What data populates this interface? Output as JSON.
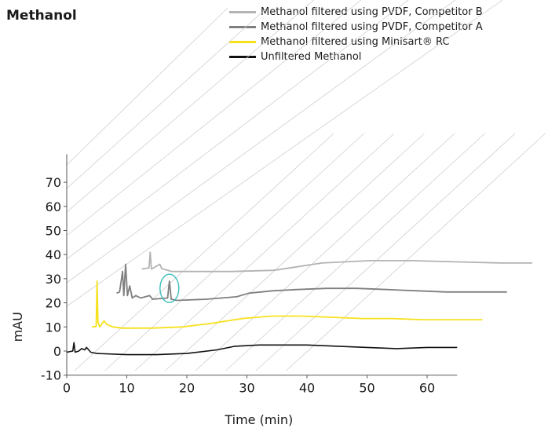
{
  "chart_data": {
    "type": "line",
    "title": "Methanol",
    "xlabel": "Time (min)",
    "ylabel": "mAU",
    "xlim": [
      0,
      65
    ],
    "ylim": [
      -10,
      80
    ],
    "x_ticks": [
      "0",
      "10",
      "20",
      "30",
      "40",
      "50",
      "60"
    ],
    "y_ticks": [
      "-10",
      "0",
      "10",
      "20",
      "30",
      "40",
      "50",
      "60",
      "70"
    ],
    "legend_position": "top",
    "series": [
      {
        "name": "Methanol filtered using PVDF, Competitor B",
        "color": "#b3b3b3",
        "offset_min": 12.5,
        "points": [
          [
            0,
            34
          ],
          [
            1.2,
            34.5
          ],
          [
            1.4,
            41
          ],
          [
            1.6,
            34
          ],
          [
            3,
            36
          ],
          [
            3.3,
            34.2
          ],
          [
            5,
            33
          ],
          [
            15,
            33
          ],
          [
            22,
            33.5
          ],
          [
            30,
            36.5
          ],
          [
            38,
            37.5
          ],
          [
            45,
            37.5
          ],
          [
            52,
            37
          ],
          [
            60,
            36.5
          ],
          [
            65,
            36.5
          ]
        ]
      },
      {
        "name": "Methanol filtered using PVDF, Competitor A",
        "color": "#7f7f7f",
        "offset_min": 8.3,
        "points": [
          [
            0,
            24
          ],
          [
            0.5,
            24.5
          ],
          [
            1.0,
            33
          ],
          [
            1.2,
            23
          ],
          [
            1.5,
            36
          ],
          [
            1.8,
            23
          ],
          [
            2.2,
            27
          ],
          [
            2.6,
            22
          ],
          [
            3.2,
            23
          ],
          [
            4,
            22
          ],
          [
            5.5,
            23
          ],
          [
            6,
            21.5
          ],
          [
            8.5,
            22
          ],
          [
            8.8,
            29
          ],
          [
            9.1,
            21.5
          ],
          [
            10,
            21
          ],
          [
            15,
            21.5
          ],
          [
            20,
            22.5
          ],
          [
            22,
            24
          ],
          [
            26,
            25
          ],
          [
            30,
            25.5
          ],
          [
            35,
            26
          ],
          [
            40,
            26
          ],
          [
            45,
            25.5
          ],
          [
            50,
            25
          ],
          [
            55,
            24.5
          ],
          [
            60,
            24.5
          ],
          [
            65,
            24.5
          ]
        ]
      },
      {
        "name": "Methanol filtered using Minisart® RC",
        "color": "#f7e11d",
        "offset_min": 4.2,
        "points": [
          [
            0,
            10
          ],
          [
            0.7,
            10.2
          ],
          [
            0.85,
            29
          ],
          [
            1.0,
            12
          ],
          [
            1.3,
            10
          ],
          [
            2,
            12.5
          ],
          [
            2.5,
            11
          ],
          [
            3.5,
            10
          ],
          [
            5,
            9.5
          ],
          [
            10,
            9.5
          ],
          [
            15,
            10
          ],
          [
            20,
            11.5
          ],
          [
            25,
            13.5
          ],
          [
            30,
            14.5
          ],
          [
            35,
            14.5
          ],
          [
            40,
            14
          ],
          [
            45,
            13.5
          ],
          [
            50,
            13.5
          ],
          [
            55,
            13
          ],
          [
            60,
            13
          ],
          [
            65,
            13
          ]
        ]
      },
      {
        "name": "Unfiltered Methanol",
        "color": "#111111",
        "offset_min": 0,
        "points": [
          [
            0,
            -0.5
          ],
          [
            1,
            0
          ],
          [
            1.2,
            3.5
          ],
          [
            1.4,
            -0.5
          ],
          [
            2,
            0
          ],
          [
            2.5,
            1
          ],
          [
            3,
            0.5
          ],
          [
            3.3,
            1.5
          ],
          [
            4,
            -0.5
          ],
          [
            5,
            -1
          ],
          [
            10,
            -1.5
          ],
          [
            15,
            -1.5
          ],
          [
            20,
            -1
          ],
          [
            25,
            0.5
          ],
          [
            28,
            2
          ],
          [
            32,
            2.5
          ],
          [
            40,
            2.5
          ],
          [
            50,
            1.5
          ],
          [
            55,
            1
          ],
          [
            60,
            1.5
          ],
          [
            65,
            1.5
          ]
        ]
      }
    ],
    "annotation": {
      "type": "circle-highlight",
      "series": "Methanol filtered using PVDF, Competitor A",
      "x": 8.8,
      "y": 26,
      "color": "#3bbcb8"
    }
  }
}
